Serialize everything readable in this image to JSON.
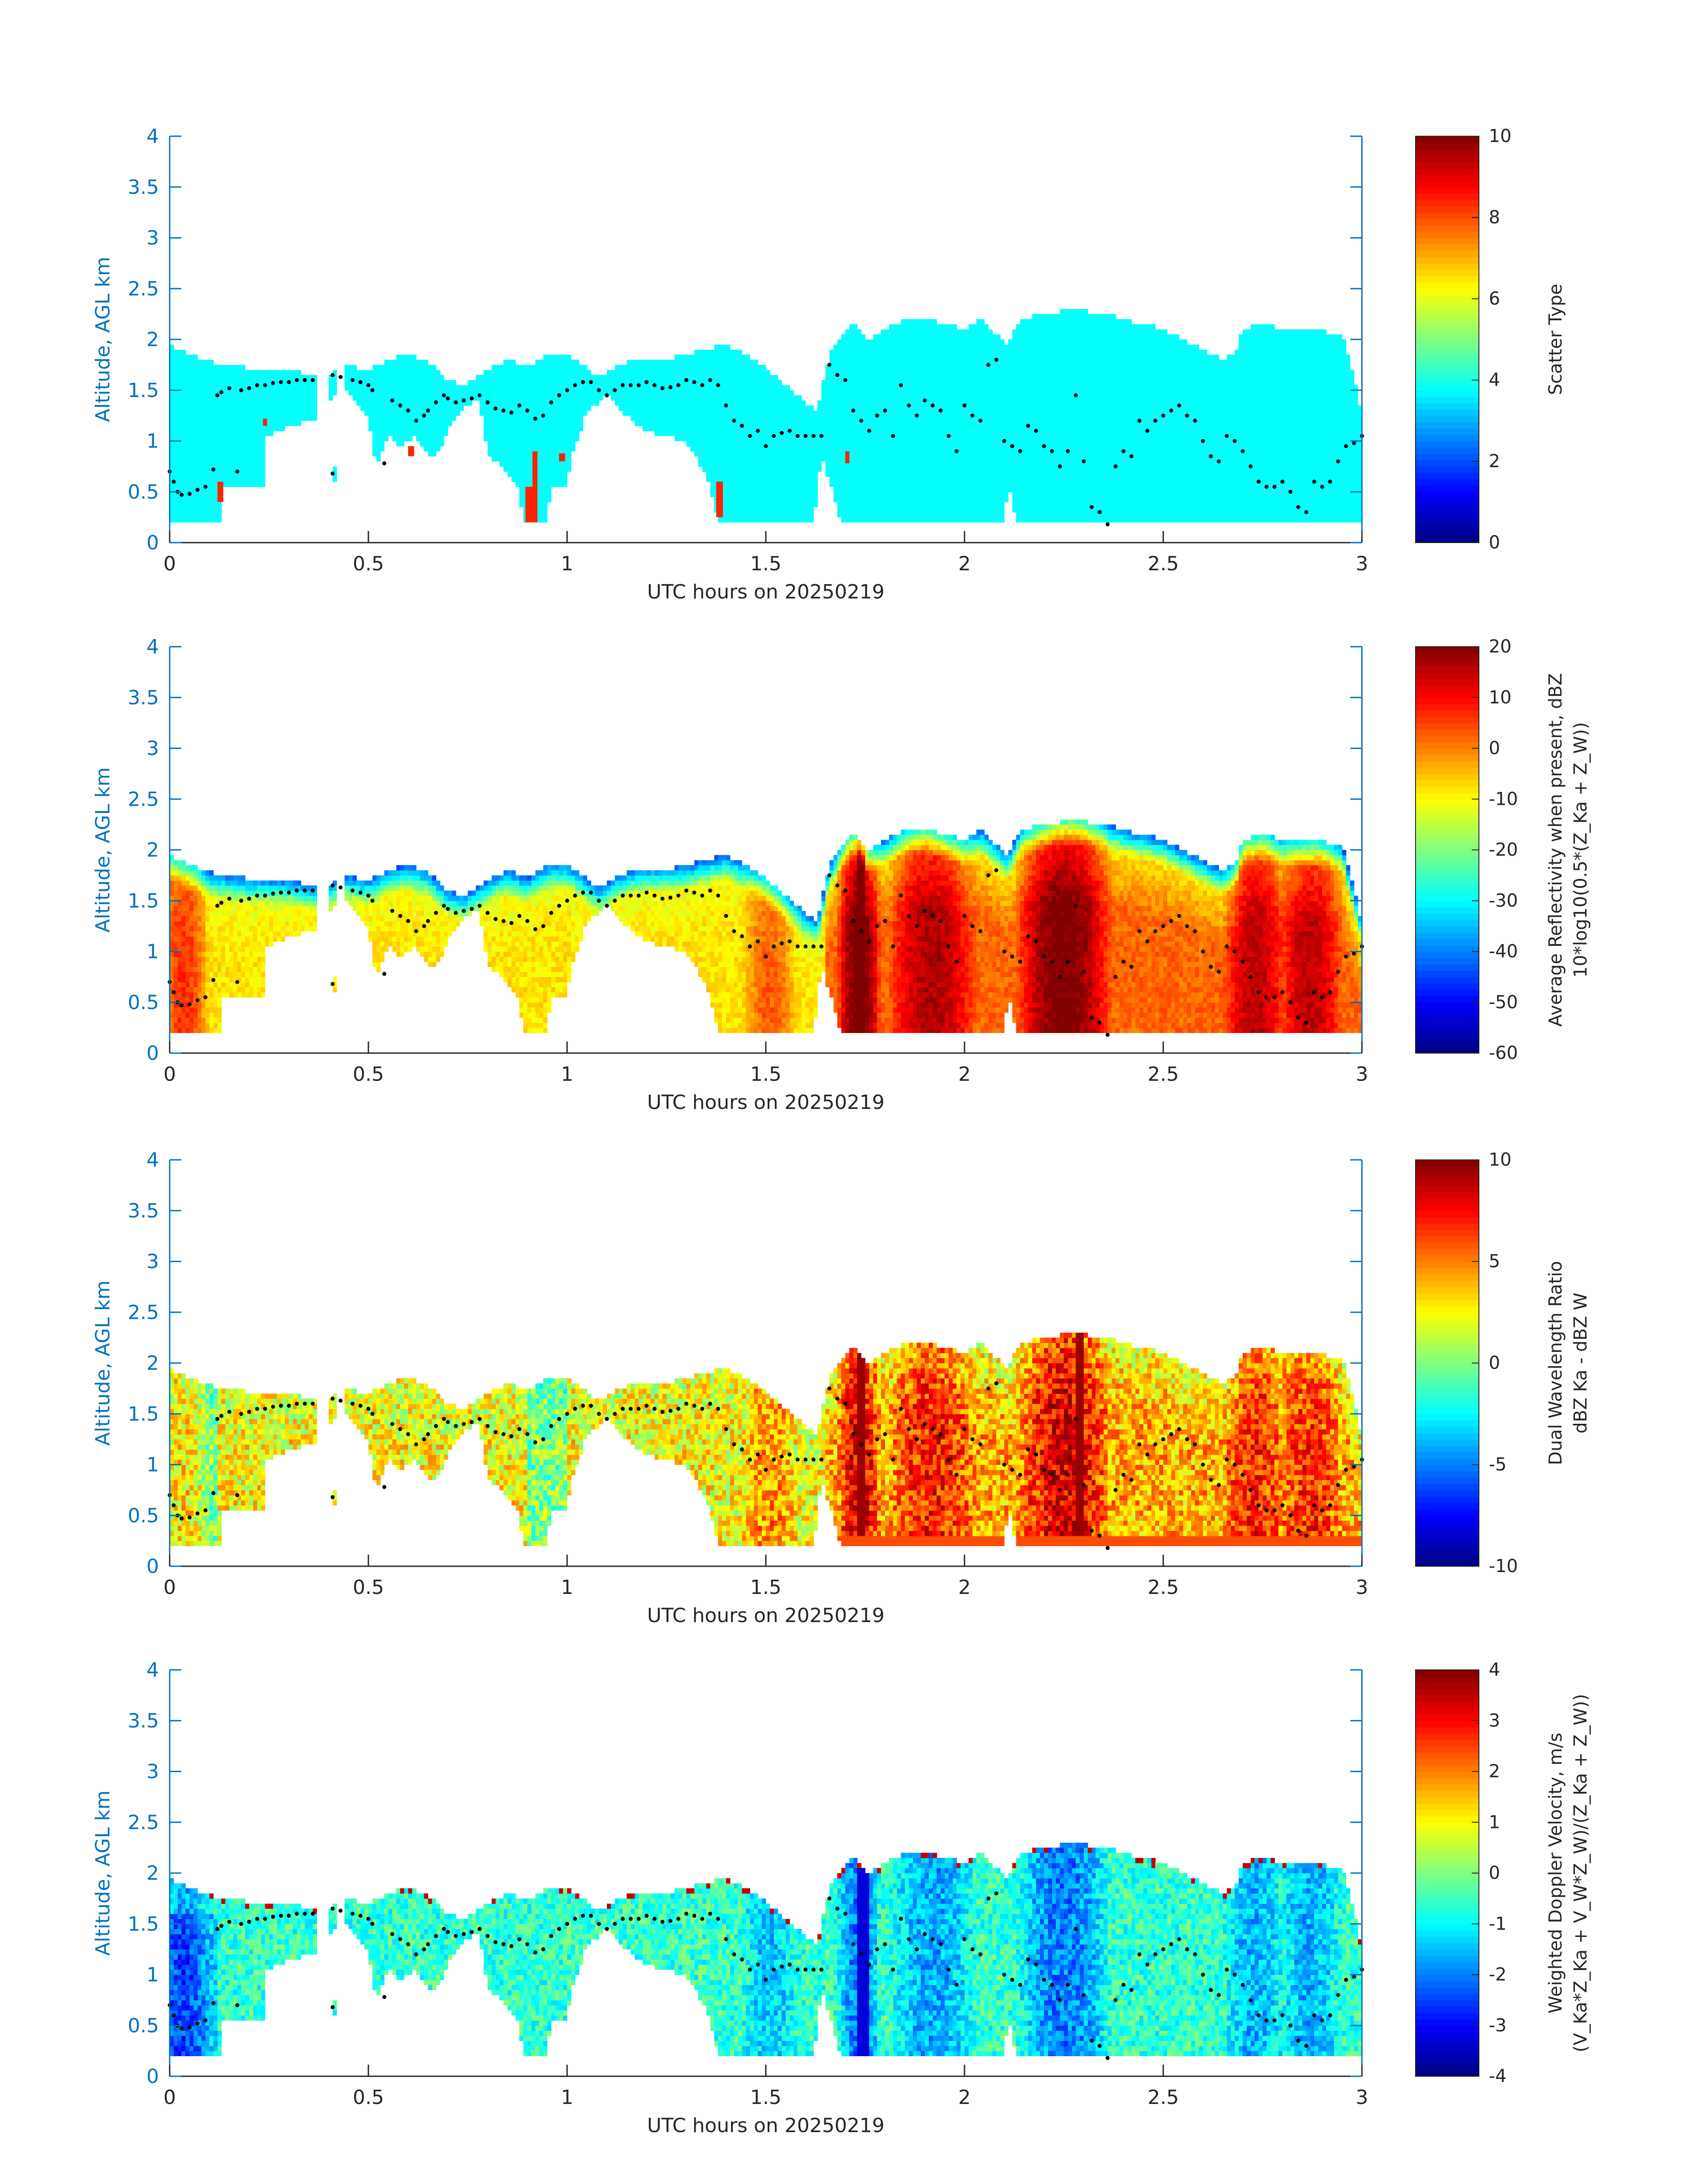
{
  "colors": {
    "axis": "#0072BD",
    "text": "#262626",
    "dots": "#000000",
    "background": "#ffffff"
  },
  "chart_data": [
    {
      "type": "heatmap",
      "panel": "scatter-type",
      "xlabel": "UTC hours on 20250219",
      "ylabel": "Altitude, AGL km",
      "xlim": [
        0,
        3
      ],
      "ylim": [
        0,
        4
      ],
      "xticks": [
        "0",
        "0.5",
        "1",
        "1.5",
        "2",
        "2.5",
        "3"
      ],
      "yticks": [
        "0",
        "0.5",
        "1",
        "1.5",
        "2",
        "2.5",
        "3",
        "3.5",
        "4"
      ],
      "colorbar": {
        "label": "Scatter Type",
        "label2": "",
        "range": [
          0,
          10
        ],
        "ticks": [
          "0",
          "2",
          "4",
          "6",
          "8",
          "10"
        ]
      },
      "field": "scatter",
      "base_value": 3.8,
      "orange_value": 8.4,
      "orange_patches": [
        [
          0.895,
          0.925,
          0.2,
          0.55
        ],
        [
          0.913,
          0.925,
          0.2,
          0.9
        ],
        [
          1.375,
          1.392,
          0.25,
          0.6
        ],
        [
          0.12,
          0.135,
          0.4,
          0.6
        ],
        [
          1.7,
          1.71,
          0.78,
          0.9
        ],
        [
          0.6,
          0.615,
          0.85,
          0.95
        ],
        [
          0.235,
          0.245,
          1.15,
          1.22
        ],
        [
          0.98,
          0.995,
          0.8,
          0.88
        ]
      ]
    },
    {
      "type": "heatmap",
      "panel": "reflectivity",
      "xlabel": "UTC hours on 20250219",
      "ylabel": "Altitude, AGL km",
      "xlim": [
        0,
        3
      ],
      "ylim": [
        0,
        4
      ],
      "xticks": [
        "0",
        "0.5",
        "1",
        "1.5",
        "2",
        "2.5",
        "3"
      ],
      "yticks": [
        "0",
        "0.5",
        "1",
        "1.5",
        "2",
        "2.5",
        "3",
        "3.5",
        "4"
      ],
      "colorbar": {
        "label": "Average Reflectivity when present, dBZ",
        "label2": "10*log10(0.5*(Z_Ka + Z_W))",
        "range": [
          -60,
          20
        ],
        "ticks": [
          "-60",
          "-50",
          "-40",
          "-30",
          "-20",
          "-10",
          "0",
          "10",
          "20"
        ]
      },
      "field": "reflectivity"
    },
    {
      "type": "heatmap",
      "panel": "dual-wavelength-ratio",
      "xlabel": "UTC hours on 20250219",
      "ylabel": "Altitude, AGL km",
      "xlim": [
        0,
        3
      ],
      "ylim": [
        0,
        4
      ],
      "xticks": [
        "0",
        "0.5",
        "1",
        "1.5",
        "2",
        "2.5",
        "3"
      ],
      "yticks": [
        "0",
        "0.5",
        "1",
        "1.5",
        "2",
        "2.5",
        "3",
        "3.5",
        "4"
      ],
      "colorbar": {
        "label": "Dual Wavelength Ratio",
        "label2": "dBZ Ka - dBZ W",
        "range": [
          -10,
          10
        ],
        "ticks": [
          "-10",
          "-5",
          "0",
          "5",
          "10"
        ]
      },
      "field": "dwr"
    },
    {
      "type": "heatmap",
      "panel": "doppler-velocity",
      "xlabel": "UTC hours on 20250219",
      "ylabel": "Altitude, AGL km",
      "xlim": [
        0,
        3
      ],
      "ylim": [
        0,
        4
      ],
      "xticks": [
        "0",
        "0.5",
        "1",
        "1.5",
        "2",
        "2.5",
        "3"
      ],
      "yticks": [
        "0",
        "0.5",
        "1",
        "1.5",
        "2",
        "2.5",
        "3",
        "3.5",
        "4"
      ],
      "colorbar": {
        "label": "Weighted Doppler Velocity, m/s",
        "label2": "(V_Ka*Z_Ka + V_W*Z_W)/(Z_Ka + Z_W))",
        "range": [
          -4,
          4
        ],
        "ticks": [
          "-4",
          "-3",
          "-2",
          "-1",
          "0",
          "1",
          "2",
          "3",
          "4"
        ]
      },
      "field": "doppler"
    }
  ],
  "data_extent": {
    "x_gaps": [
      [
        0.375,
        0.405
      ],
      [
        0.418,
        0.44
      ]
    ],
    "cloud_top_km": [
      [
        0.0,
        1.95
      ],
      [
        0.02,
        1.9
      ],
      [
        0.05,
        1.85
      ],
      [
        0.1,
        1.78
      ],
      [
        0.13,
        1.75
      ],
      [
        0.2,
        1.72
      ],
      [
        0.3,
        1.7
      ],
      [
        0.36,
        1.65
      ],
      [
        0.375,
        1.6
      ],
      [
        0.44,
        1.75
      ],
      [
        0.5,
        1.7
      ],
      [
        0.55,
        1.8
      ],
      [
        0.6,
        1.85
      ],
      [
        0.65,
        1.78
      ],
      [
        0.7,
        1.6
      ],
      [
        0.74,
        1.55
      ],
      [
        0.78,
        1.65
      ],
      [
        0.82,
        1.75
      ],
      [
        0.85,
        1.8
      ],
      [
        0.9,
        1.72
      ],
      [
        0.95,
        1.85
      ],
      [
        1.0,
        1.86
      ],
      [
        1.04,
        1.75
      ],
      [
        1.08,
        1.62
      ],
      [
        1.12,
        1.73
      ],
      [
        1.16,
        1.8
      ],
      [
        1.2,
        1.82
      ],
      [
        1.26,
        1.82
      ],
      [
        1.3,
        1.85
      ],
      [
        1.35,
        1.9
      ],
      [
        1.4,
        1.95
      ],
      [
        1.45,
        1.85
      ],
      [
        1.5,
        1.72
      ],
      [
        1.55,
        1.55
      ],
      [
        1.6,
        1.38
      ],
      [
        1.63,
        1.3
      ],
      [
        1.66,
        1.85
      ],
      [
        1.69,
        2.05
      ],
      [
        1.72,
        2.15
      ],
      [
        1.76,
        2.0
      ],
      [
        1.8,
        2.1
      ],
      [
        1.85,
        2.2
      ],
      [
        1.9,
        2.22
      ],
      [
        1.95,
        2.15
      ],
      [
        2.0,
        2.1
      ],
      [
        2.04,
        2.2
      ],
      [
        2.08,
        2.05
      ],
      [
        2.11,
        1.95
      ],
      [
        2.14,
        2.2
      ],
      [
        2.2,
        2.25
      ],
      [
        2.25,
        2.28
      ],
      [
        2.3,
        2.28
      ],
      [
        2.35,
        2.25
      ],
      [
        2.4,
        2.2
      ],
      [
        2.45,
        2.15
      ],
      [
        2.5,
        2.1
      ],
      [
        2.55,
        2.0
      ],
      [
        2.6,
        1.9
      ],
      [
        2.65,
        1.8
      ],
      [
        2.68,
        1.85
      ],
      [
        2.7,
        2.1
      ],
      [
        2.75,
        2.15
      ],
      [
        2.8,
        2.1
      ],
      [
        2.85,
        2.08
      ],
      [
        2.9,
        2.08
      ],
      [
        2.95,
        2.05
      ],
      [
        3.0,
        1.3
      ]
    ],
    "cloud_base_km": [
      [
        0.0,
        0.2
      ],
      [
        0.1,
        0.2
      ],
      [
        0.13,
        0.55
      ],
      [
        0.2,
        0.6
      ],
      [
        0.24,
        1.05
      ],
      [
        0.3,
        1.15
      ],
      [
        0.36,
        1.2
      ],
      [
        0.44,
        1.55
      ],
      [
        0.5,
        1.25
      ],
      [
        0.52,
        0.75
      ],
      [
        0.55,
        1.05
      ],
      [
        0.58,
        0.95
      ],
      [
        0.62,
        1.05
      ],
      [
        0.65,
        0.85
      ],
      [
        0.68,
        0.9
      ],
      [
        0.7,
        1.1
      ],
      [
        0.74,
        1.35
      ],
      [
        0.78,
        1.4
      ],
      [
        0.8,
        0.85
      ],
      [
        0.84,
        0.75
      ],
      [
        0.88,
        0.5
      ],
      [
        0.89,
        0.2
      ],
      [
        0.95,
        0.2
      ],
      [
        0.96,
        0.55
      ],
      [
        1.0,
        0.55
      ],
      [
        1.01,
        0.82
      ],
      [
        1.05,
        1.3
      ],
      [
        1.1,
        1.45
      ],
      [
        1.15,
        1.25
      ],
      [
        1.2,
        1.1
      ],
      [
        1.25,
        1.05
      ],
      [
        1.3,
        1.0
      ],
      [
        1.33,
        0.8
      ],
      [
        1.36,
        0.55
      ],
      [
        1.38,
        0.2
      ],
      [
        1.62,
        0.2
      ],
      [
        1.64,
        0.85
      ],
      [
        1.66,
        0.6
      ],
      [
        1.69,
        0.2
      ],
      [
        2.1,
        0.2
      ],
      [
        2.11,
        0.6
      ],
      [
        2.13,
        0.2
      ],
      [
        2.95,
        0.2
      ],
      [
        3.0,
        0.2
      ]
    ],
    "low_patches": [
      [
        0.12,
        0.24,
        0.55,
        1.0
      ],
      [
        0.41,
        0.42,
        0.6,
        0.75
      ],
      [
        0.0,
        0.125,
        0.2,
        0.6
      ]
    ]
  },
  "track_dots": [
    [
      0.0,
      0.7
    ],
    [
      0.01,
      0.6
    ],
    [
      0.02,
      0.5
    ],
    [
      0.03,
      0.47
    ],
    [
      0.05,
      0.48
    ],
    [
      0.07,
      0.52
    ],
    [
      0.09,
      0.55
    ],
    [
      0.11,
      0.72
    ],
    [
      0.12,
      1.45
    ],
    [
      0.13,
      1.48
    ],
    [
      0.15,
      1.52
    ],
    [
      0.17,
      0.7
    ],
    [
      0.18,
      1.5
    ],
    [
      0.2,
      1.52
    ],
    [
      0.22,
      1.55
    ],
    [
      0.24,
      1.55
    ],
    [
      0.26,
      1.57
    ],
    [
      0.28,
      1.58
    ],
    [
      0.3,
      1.58
    ],
    [
      0.32,
      1.6
    ],
    [
      0.34,
      1.6
    ],
    [
      0.36,
      1.6
    ],
    [
      0.41,
      0.68
    ],
    [
      0.41,
      1.65
    ],
    [
      0.43,
      1.63
    ],
    [
      0.46,
      1.6
    ],
    [
      0.48,
      1.58
    ],
    [
      0.5,
      1.55
    ],
    [
      0.51,
      1.5
    ],
    [
      0.54,
      0.78
    ],
    [
      0.56,
      1.4
    ],
    [
      0.58,
      1.35
    ],
    [
      0.6,
      1.3
    ],
    [
      0.62,
      1.2
    ],
    [
      0.64,
      1.25
    ],
    [
      0.65,
      1.3
    ],
    [
      0.67,
      1.38
    ],
    [
      0.69,
      1.45
    ],
    [
      0.7,
      1.42
    ],
    [
      0.72,
      1.38
    ],
    [
      0.74,
      1.4
    ],
    [
      0.76,
      1.42
    ],
    [
      0.78,
      1.45
    ],
    [
      0.8,
      1.38
    ],
    [
      0.82,
      1.32
    ],
    [
      0.84,
      1.3
    ],
    [
      0.86,
      1.28
    ],
    [
      0.88,
      1.35
    ],
    [
      0.9,
      1.3
    ],
    [
      0.92,
      1.22
    ],
    [
      0.94,
      1.25
    ],
    [
      0.96,
      1.38
    ],
    [
      0.98,
      1.45
    ],
    [
      1.0,
      1.5
    ],
    [
      1.02,
      1.55
    ],
    [
      1.04,
      1.58
    ],
    [
      1.06,
      1.58
    ],
    [
      1.08,
      1.5
    ],
    [
      1.1,
      1.45
    ],
    [
      1.12,
      1.5
    ],
    [
      1.14,
      1.55
    ],
    [
      1.16,
      1.55
    ],
    [
      1.18,
      1.55
    ],
    [
      1.2,
      1.58
    ],
    [
      1.22,
      1.55
    ],
    [
      1.24,
      1.52
    ],
    [
      1.26,
      1.53
    ],
    [
      1.28,
      1.55
    ],
    [
      1.3,
      1.6
    ],
    [
      1.32,
      1.58
    ],
    [
      1.34,
      1.55
    ],
    [
      1.36,
      1.6
    ],
    [
      1.38,
      1.55
    ],
    [
      1.4,
      1.35
    ],
    [
      1.42,
      1.2
    ],
    [
      1.44,
      1.15
    ],
    [
      1.46,
      1.05
    ],
    [
      1.48,
      1.1
    ],
    [
      1.5,
      0.95
    ],
    [
      1.52,
      1.05
    ],
    [
      1.54,
      1.08
    ],
    [
      1.56,
      1.1
    ],
    [
      1.58,
      1.05
    ],
    [
      1.6,
      1.05
    ],
    [
      1.62,
      1.05
    ],
    [
      1.64,
      1.05
    ],
    [
      1.66,
      1.75
    ],
    [
      1.68,
      1.65
    ],
    [
      1.7,
      1.6
    ],
    [
      1.72,
      1.3
    ],
    [
      1.74,
      1.2
    ],
    [
      1.76,
      1.1
    ],
    [
      1.78,
      1.25
    ],
    [
      1.8,
      1.3
    ],
    [
      1.82,
      1.05
    ],
    [
      1.84,
      1.55
    ],
    [
      1.86,
      1.35
    ],
    [
      1.88,
      1.25
    ],
    [
      1.9,
      1.4
    ],
    [
      1.92,
      1.35
    ],
    [
      1.94,
      1.3
    ],
    [
      1.96,
      1.05
    ],
    [
      1.98,
      0.9
    ],
    [
      2.0,
      1.35
    ],
    [
      2.02,
      1.25
    ],
    [
      2.04,
      1.2
    ],
    [
      2.06,
      1.75
    ],
    [
      2.08,
      1.8
    ],
    [
      2.1,
      1.0
    ],
    [
      2.12,
      0.95
    ],
    [
      2.14,
      0.9
    ],
    [
      2.16,
      1.15
    ],
    [
      2.18,
      1.1
    ],
    [
      2.2,
      0.95
    ],
    [
      2.22,
      0.9
    ],
    [
      2.24,
      0.75
    ],
    [
      2.26,
      0.9
    ],
    [
      2.28,
      1.45
    ],
    [
      2.3,
      0.8
    ],
    [
      2.32,
      0.35
    ],
    [
      2.34,
      0.3
    ],
    [
      2.36,
      0.18
    ],
    [
      2.38,
      0.75
    ],
    [
      2.4,
      0.9
    ],
    [
      2.42,
      0.85
    ],
    [
      2.44,
      1.2
    ],
    [
      2.46,
      1.1
    ],
    [
      2.48,
      1.2
    ],
    [
      2.5,
      1.25
    ],
    [
      2.52,
      1.3
    ],
    [
      2.54,
      1.35
    ],
    [
      2.56,
      1.25
    ],
    [
      2.58,
      1.2
    ],
    [
      2.6,
      1.0
    ],
    [
      2.62,
      0.85
    ],
    [
      2.64,
      0.8
    ],
    [
      2.66,
      1.05
    ],
    [
      2.68,
      1.0
    ],
    [
      2.7,
      0.9
    ],
    [
      2.72,
      0.75
    ],
    [
      2.74,
      0.6
    ],
    [
      2.76,
      0.55
    ],
    [
      2.78,
      0.55
    ],
    [
      2.8,
      0.6
    ],
    [
      2.82,
      0.5
    ],
    [
      2.84,
      0.35
    ],
    [
      2.86,
      0.3
    ],
    [
      2.88,
      0.6
    ],
    [
      2.9,
      0.55
    ],
    [
      2.92,
      0.6
    ],
    [
      2.94,
      0.8
    ],
    [
      2.96,
      0.95
    ],
    [
      2.98,
      0.98
    ],
    [
      3.0,
      1.05
    ]
  ]
}
